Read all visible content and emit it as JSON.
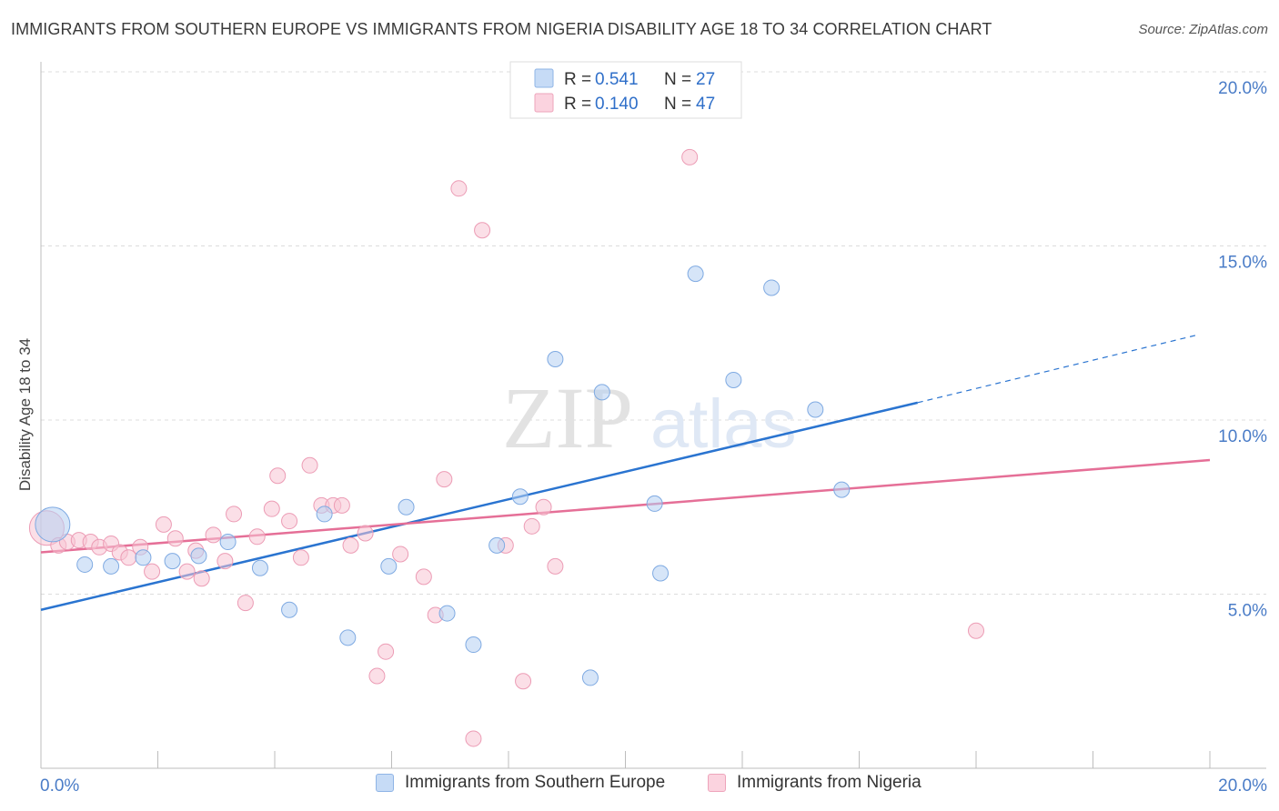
{
  "title": "IMMIGRANTS FROM SOUTHERN EUROPE VS IMMIGRANTS FROM NIGERIA DISABILITY AGE 18 TO 34 CORRELATION CHART",
  "source": "Source: ZipAtlas.com",
  "watermark": {
    "zip": "ZIP",
    "atlas": "atlas"
  },
  "colors": {
    "blue": "#a9c8f0",
    "blue_line": "#2a74d0",
    "pink": "#f6b9cb",
    "pink_line": "#e56f97",
    "tick_text": "#4a7cc7"
  },
  "stats_legend": [
    {
      "r_label": "R =",
      "r_value": "0.541",
      "n_label": "N =",
      "n_value": "27"
    },
    {
      "r_label": "R =",
      "r_value": "0.140",
      "n_label": "N =",
      "n_value": "47"
    }
  ],
  "chart_data": {
    "type": "scatter",
    "title": "IMMIGRANTS FROM SOUTHERN EUROPE VS IMMIGRANTS FROM NIGERIA DISABILITY AGE 18 TO 34 CORRELATION CHART",
    "xlabel": "",
    "ylabel": "Disability Age 18 to 34",
    "xlim": [
      0,
      20
    ],
    "ylim": [
      0,
      20
    ],
    "x_tick_labels": [
      "0.0%",
      "20.0%"
    ],
    "y_ticks": [
      5,
      10,
      15,
      20
    ],
    "y_tick_labels": [
      "5.0%",
      "10.0%",
      "15.0%",
      "20.0%"
    ],
    "grid": true,
    "legend_position": "top-center",
    "series": [
      {
        "name": "Immigrants from Southern Europe",
        "color": "#a9c8f0",
        "trend": {
          "x0": 0,
          "y0": 4.55,
          "x1": 15,
          "y1": 10.5,
          "dashed_to_x": 19.8,
          "dashed_to_y": 12.45
        },
        "points": [
          {
            "x": 0.2,
            "y": 7.0,
            "big": true
          },
          {
            "x": 0.75,
            "y": 5.85
          },
          {
            "x": 1.2,
            "y": 5.8
          },
          {
            "x": 1.75,
            "y": 6.05
          },
          {
            "x": 2.25,
            "y": 5.95
          },
          {
            "x": 2.7,
            "y": 6.1
          },
          {
            "x": 3.2,
            "y": 6.5
          },
          {
            "x": 3.75,
            "y": 5.75
          },
          {
            "x": 4.25,
            "y": 4.55
          },
          {
            "x": 4.85,
            "y": 7.3
          },
          {
            "x": 5.25,
            "y": 3.75
          },
          {
            "x": 5.95,
            "y": 5.8
          },
          {
            "x": 6.25,
            "y": 7.5
          },
          {
            "x": 6.95,
            "y": 4.45
          },
          {
            "x": 7.4,
            "y": 3.55
          },
          {
            "x": 7.8,
            "y": 6.4
          },
          {
            "x": 8.2,
            "y": 7.8
          },
          {
            "x": 8.8,
            "y": 11.75
          },
          {
            "x": 9.4,
            "y": 2.6
          },
          {
            "x": 9.6,
            "y": 10.8
          },
          {
            "x": 10.5,
            "y": 7.6
          },
          {
            "x": 10.6,
            "y": 5.6
          },
          {
            "x": 11.2,
            "y": 14.2
          },
          {
            "x": 11.85,
            "y": 11.15
          },
          {
            "x": 12.5,
            "y": 13.8
          },
          {
            "x": 13.25,
            "y": 10.3
          },
          {
            "x": 13.7,
            "y": 8.0
          }
        ]
      },
      {
        "name": "Immigrants from Nigeria",
        "color": "#f6b9cb",
        "trend": {
          "x0": 0,
          "y0": 6.2,
          "x1": 20,
          "y1": 8.85
        },
        "points": [
          {
            "x": 0.1,
            "y": 6.9,
            "big": true
          },
          {
            "x": 0.3,
            "y": 6.4
          },
          {
            "x": 0.45,
            "y": 6.5
          },
          {
            "x": 0.65,
            "y": 6.55
          },
          {
            "x": 0.85,
            "y": 6.5
          },
          {
            "x": 1.0,
            "y": 6.35
          },
          {
            "x": 1.2,
            "y": 6.45
          },
          {
            "x": 1.35,
            "y": 6.2
          },
          {
            "x": 1.5,
            "y": 6.05
          },
          {
            "x": 1.7,
            "y": 6.35
          },
          {
            "x": 1.9,
            "y": 5.65
          },
          {
            "x": 2.1,
            "y": 7.0
          },
          {
            "x": 2.3,
            "y": 6.6
          },
          {
            "x": 2.5,
            "y": 5.65
          },
          {
            "x": 2.65,
            "y": 6.25
          },
          {
            "x": 2.75,
            "y": 5.45
          },
          {
            "x": 2.95,
            "y": 6.7
          },
          {
            "x": 3.15,
            "y": 5.95
          },
          {
            "x": 3.3,
            "y": 7.3
          },
          {
            "x": 3.5,
            "y": 4.75
          },
          {
            "x": 3.7,
            "y": 6.65
          },
          {
            "x": 3.95,
            "y": 7.45
          },
          {
            "x": 4.05,
            "y": 8.4
          },
          {
            "x": 4.25,
            "y": 7.1
          },
          {
            "x": 4.45,
            "y": 6.05
          },
          {
            "x": 4.6,
            "y": 8.7
          },
          {
            "x": 4.8,
            "y": 7.55
          },
          {
            "x": 5.0,
            "y": 7.55
          },
          {
            "x": 5.15,
            "y": 7.55
          },
          {
            "x": 5.3,
            "y": 6.4
          },
          {
            "x": 5.55,
            "y": 6.75
          },
          {
            "x": 5.75,
            "y": 2.65
          },
          {
            "x": 5.9,
            "y": 3.35
          },
          {
            "x": 6.15,
            "y": 6.15
          },
          {
            "x": 6.55,
            "y": 5.5
          },
          {
            "x": 6.75,
            "y": 4.4
          },
          {
            "x": 6.9,
            "y": 8.3
          },
          {
            "x": 7.15,
            "y": 16.65
          },
          {
            "x": 7.4,
            "y": 0.85
          },
          {
            "x": 7.55,
            "y": 15.45
          },
          {
            "x": 7.95,
            "y": 6.4
          },
          {
            "x": 8.25,
            "y": 2.5
          },
          {
            "x": 8.4,
            "y": 6.95
          },
          {
            "x": 8.6,
            "y": 7.5
          },
          {
            "x": 8.8,
            "y": 5.8
          },
          {
            "x": 11.1,
            "y": 17.55
          },
          {
            "x": 16.0,
            "y": 3.95
          }
        ]
      }
    ]
  }
}
